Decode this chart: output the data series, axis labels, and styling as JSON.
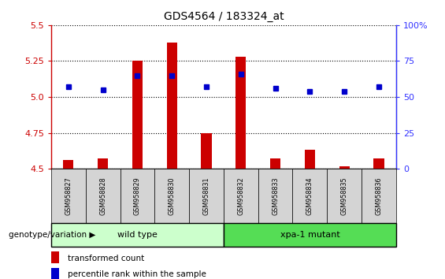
{
  "title": "GDS4564 / 183324_at",
  "samples": [
    "GSM958827",
    "GSM958828",
    "GSM958829",
    "GSM958830",
    "GSM958831",
    "GSM958832",
    "GSM958833",
    "GSM958834",
    "GSM958835",
    "GSM958836"
  ],
  "transformed_count": [
    4.56,
    4.57,
    5.25,
    5.38,
    4.75,
    5.28,
    4.57,
    4.63,
    4.52,
    4.57
  ],
  "percentile_rank": [
    57,
    55,
    65,
    65,
    57,
    66,
    56,
    54,
    54,
    57
  ],
  "ylim": [
    4.5,
    5.5
  ],
  "yticks_left": [
    4.5,
    4.75,
    5.0,
    5.25,
    5.5
  ],
  "yticks_right": [
    0,
    25,
    50,
    75,
    100
  ],
  "groups": [
    {
      "label": "wild type",
      "color_light": "#ccffcc",
      "color_dark": "#55cc55",
      "start": 0,
      "end": 5
    },
    {
      "label": "xpa-1 mutant",
      "color_light": "#55dd55",
      "color_dark": "#33aa33",
      "start": 5,
      "end": 10
    }
  ],
  "bar_color": "#cc0000",
  "dot_color": "#0000cc",
  "bar_bottom": 4.5,
  "tick_label_color_left": "#cc0000",
  "tick_label_color_right": "#3333ff",
  "title_color": "#000000",
  "legend_items": [
    {
      "label": "transformed count",
      "color": "#cc0000",
      "type": "square"
    },
    {
      "label": "percentile rank within the sample",
      "color": "#0000cc",
      "type": "square"
    }
  ],
  "genotype_label": "genotype/variation"
}
